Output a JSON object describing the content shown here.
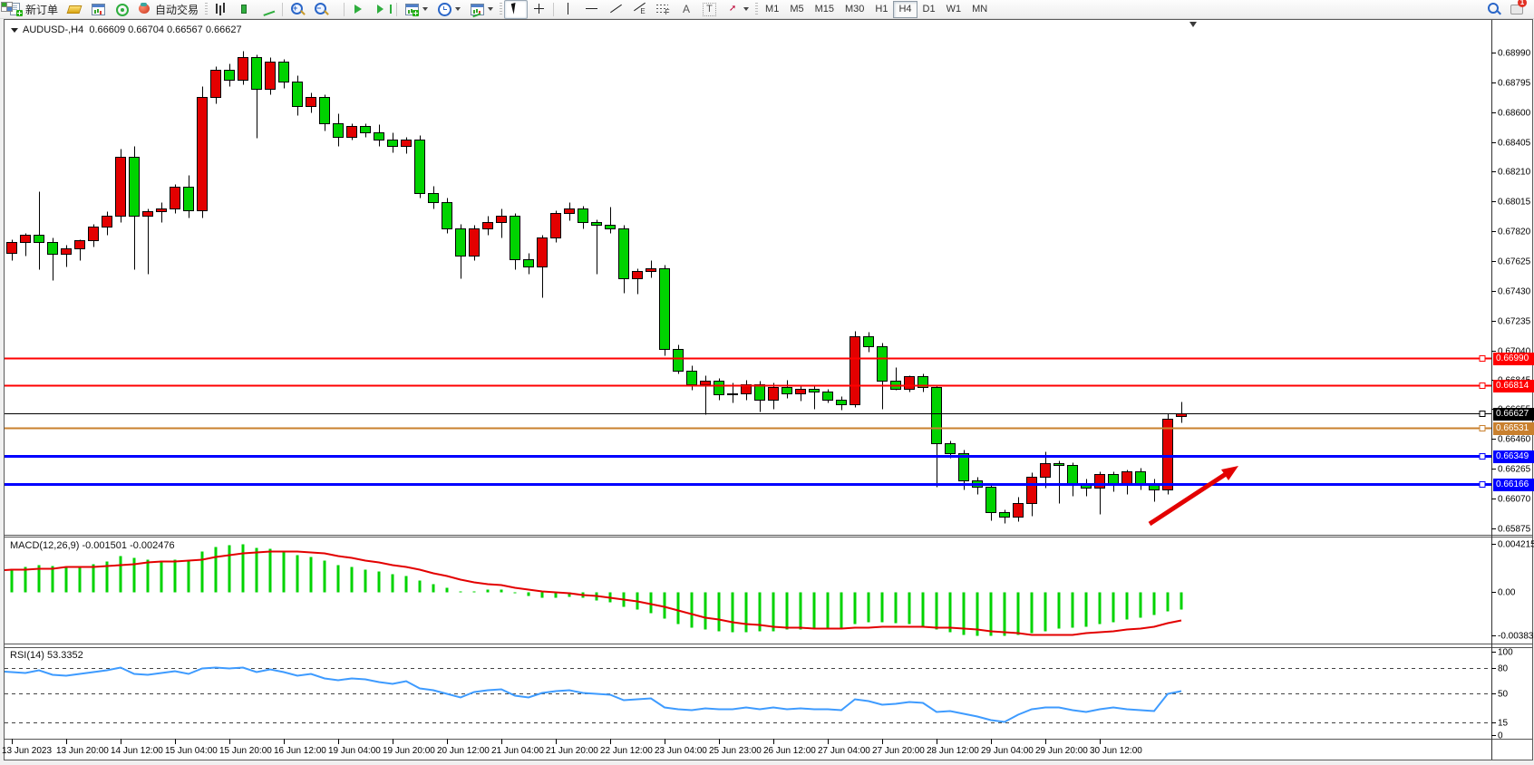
{
  "toolbar": {
    "new_order_label": "新订单",
    "autotrading_label": "自动交易",
    "timeframes": [
      "M1",
      "M5",
      "M15",
      "M30",
      "H1",
      "H4",
      "D1",
      "W1",
      "MN"
    ],
    "active_timeframe": "H4",
    "chat_badge": "1",
    "glyphs": {
      "channel": "E",
      "fibo": "F",
      "text": "A",
      "label": "T",
      "arrow": "➚"
    }
  },
  "chart": {
    "title_symbol": "AUDUSD-,H4",
    "title_ohlc": "0.66609 0.66704 0.66567 0.66627",
    "colors": {
      "bull": "#e30000",
      "bear": "#00d300",
      "wick": "#000000",
      "rsi_line": "#3e9bff",
      "macd_bar": "#00d300",
      "macd_signal": "#e30000",
      "background": "#ffffff"
    }
  },
  "chart_data": {
    "type": "candlestick",
    "symbol": "AUDUSD-",
    "timeframe": "H4",
    "current_ohlc": {
      "open": 0.66609,
      "high": 0.66704,
      "low": 0.66567,
      "close": 0.66627
    },
    "price_axis_ticks": [
      "0.68990",
      "0.68795",
      "0.68600",
      "0.68405",
      "0.68210",
      "0.68015",
      "0.67820",
      "0.67625",
      "0.67430",
      "0.67235",
      "0.67040",
      "0.66845",
      "0.66655",
      "0.66460",
      "0.66265",
      "0.66070",
      "0.65875"
    ],
    "time_axis_labels": [
      "13 Jun 2023",
      "13 Jun 20:00",
      "14 Jun 12:00",
      "15 Jun 04:00",
      "15 Jun 20:00",
      "16 Jun 12:00",
      "19 Jun 04:00",
      "19 Jun 20:00",
      "20 Jun 12:00",
      "21 Jun 04:00",
      "21 Jun 20:00",
      "22 Jun 12:00",
      "23 Jun 04:00",
      "25 Jun 23:00",
      "26 Jun 12:00",
      "27 Jun 04:00",
      "27 Jun 20:00",
      "28 Jun 12:00",
      "29 Jun 04:00",
      "29 Jun 20:00",
      "30 Jun 12:00"
    ],
    "candles": [
      [
        0.6754,
        0.6769,
        0.6752,
        0.6768
      ],
      [
        0.6768,
        0.6777,
        0.6763,
        0.6775
      ],
      [
        0.6775,
        0.6781,
        0.6766,
        0.678
      ],
      [
        0.678,
        0.6808,
        0.6757,
        0.6775
      ],
      [
        0.6775,
        0.6778,
        0.675,
        0.6767
      ],
      [
        0.6767,
        0.6773,
        0.6759,
        0.6771
      ],
      [
        0.6771,
        0.6777,
        0.6763,
        0.6776
      ],
      [
        0.6776,
        0.6787,
        0.6772,
        0.6785
      ],
      [
        0.6785,
        0.6795,
        0.678,
        0.6792
      ],
      [
        0.6792,
        0.6836,
        0.6788,
        0.6831
      ],
      [
        0.6831,
        0.6838,
        0.6757,
        0.6792
      ],
      [
        0.6792,
        0.6797,
        0.6754,
        0.6795
      ],
      [
        0.6795,
        0.6801,
        0.6788,
        0.6797
      ],
      [
        0.6797,
        0.6813,
        0.6794,
        0.6811
      ],
      [
        0.6811,
        0.6819,
        0.6791,
        0.6796
      ],
      [
        0.6796,
        0.6877,
        0.6791,
        0.687
      ],
      [
        0.687,
        0.689,
        0.6866,
        0.6888
      ],
      [
        0.6888,
        0.6892,
        0.6877,
        0.6881
      ],
      [
        0.6881,
        0.69,
        0.6878,
        0.6896
      ],
      [
        0.6896,
        0.6898,
        0.6843,
        0.6875
      ],
      [
        0.6875,
        0.6896,
        0.6872,
        0.6893
      ],
      [
        0.6893,
        0.6895,
        0.6876,
        0.688
      ],
      [
        0.688,
        0.6884,
        0.6858,
        0.6864
      ],
      [
        0.6864,
        0.6873,
        0.686,
        0.687
      ],
      [
        0.687,
        0.6872,
        0.6848,
        0.6853
      ],
      [
        0.6853,
        0.6859,
        0.6838,
        0.6844
      ],
      [
        0.6844,
        0.6853,
        0.6842,
        0.6851
      ],
      [
        0.6851,
        0.6853,
        0.6844,
        0.6847
      ],
      [
        0.6847,
        0.6852,
        0.6838,
        0.6842
      ],
      [
        0.6842,
        0.6847,
        0.6834,
        0.6838
      ],
      [
        0.6838,
        0.6844,
        0.6833,
        0.6842
      ],
      [
        0.6842,
        0.6845,
        0.6804,
        0.6807
      ],
      [
        0.6807,
        0.6812,
        0.6797,
        0.6801
      ],
      [
        0.6801,
        0.6804,
        0.6781,
        0.6784
      ],
      [
        0.6784,
        0.6787,
        0.6751,
        0.6766
      ],
      [
        0.6766,
        0.6786,
        0.6763,
        0.6784
      ],
      [
        0.6784,
        0.6792,
        0.678,
        0.6788
      ],
      [
        0.6788,
        0.6797,
        0.6778,
        0.6792
      ],
      [
        0.6792,
        0.6794,
        0.6757,
        0.6764
      ],
      [
        0.6764,
        0.6768,
        0.6754,
        0.6759
      ],
      [
        0.6759,
        0.678,
        0.6739,
        0.6778
      ],
      [
        0.6778,
        0.6796,
        0.6775,
        0.6794
      ],
      [
        0.6794,
        0.6801,
        0.6789,
        0.6797
      ],
      [
        0.6797,
        0.6799,
        0.6784,
        0.6788
      ],
      [
        0.6788,
        0.679,
        0.6754,
        0.6786
      ],
      [
        0.6786,
        0.6798,
        0.6781,
        0.6784
      ],
      [
        0.6784,
        0.6786,
        0.6742,
        0.6751
      ],
      [
        0.6751,
        0.6758,
        0.6741,
        0.6756
      ],
      [
        0.6756,
        0.6763,
        0.6752,
        0.6758
      ],
      [
        0.6758,
        0.676,
        0.6701,
        0.6705
      ],
      [
        0.6705,
        0.6708,
        0.6689,
        0.6691
      ],
      [
        0.6691,
        0.6694,
        0.6678,
        0.6682
      ],
      [
        0.6682,
        0.6688,
        0.6662,
        0.6684
      ],
      [
        0.6684,
        0.6686,
        0.6672,
        0.6675
      ],
      [
        0.6675,
        0.6683,
        0.667,
        0.6676
      ],
      [
        0.6676,
        0.6685,
        0.6672,
        0.6682
      ],
      [
        0.6682,
        0.6684,
        0.6664,
        0.6672
      ],
      [
        0.6672,
        0.6683,
        0.6666,
        0.668
      ],
      [
        0.668,
        0.6685,
        0.6673,
        0.6676
      ],
      [
        0.6676,
        0.6681,
        0.6671,
        0.6679
      ],
      [
        0.6679,
        0.6681,
        0.6666,
        0.6677
      ],
      [
        0.6677,
        0.6679,
        0.667,
        0.6672
      ],
      [
        0.6672,
        0.6674,
        0.6665,
        0.6669
      ],
      [
        0.6669,
        0.6717,
        0.6667,
        0.6713
      ],
      [
        0.6713,
        0.6716,
        0.6703,
        0.6707
      ],
      [
        0.6707,
        0.6709,
        0.6666,
        0.6684
      ],
      [
        0.6684,
        0.6693,
        0.6678,
        0.6679
      ],
      [
        0.6679,
        0.6688,
        0.6677,
        0.6687
      ],
      [
        0.6687,
        0.6689,
        0.6677,
        0.668
      ],
      [
        0.668,
        0.6682,
        0.6615,
        0.6643
      ],
      [
        0.6643,
        0.6645,
        0.6634,
        0.6637
      ],
      [
        0.6637,
        0.6639,
        0.6613,
        0.6619
      ],
      [
        0.6619,
        0.6621,
        0.661,
        0.6615
      ],
      [
        0.6615,
        0.6616,
        0.6593,
        0.6598
      ],
      [
        0.6598,
        0.66,
        0.6591,
        0.6595
      ],
      [
        0.6595,
        0.6608,
        0.6592,
        0.6604
      ],
      [
        0.6604,
        0.6624,
        0.6596,
        0.6621
      ],
      [
        0.6621,
        0.6638,
        0.6614,
        0.663
      ],
      [
        0.663,
        0.6632,
        0.6604,
        0.6629
      ],
      [
        0.6629,
        0.6631,
        0.6609,
        0.6617
      ],
      [
        0.6617,
        0.662,
        0.6609,
        0.6614
      ],
      [
        0.6614,
        0.6625,
        0.6597,
        0.6623
      ],
      [
        0.6623,
        0.6625,
        0.6612,
        0.6616
      ],
      [
        0.6616,
        0.6626,
        0.661,
        0.6625
      ],
      [
        0.6625,
        0.6627,
        0.6613,
        0.6616
      ],
      [
        0.6616,
        0.662,
        0.6605,
        0.6613
      ],
      [
        0.6613,
        0.6663,
        0.661,
        0.6659
      ],
      [
        0.66609,
        0.66704,
        0.66567,
        0.66627
      ]
    ],
    "hlines": [
      {
        "price": 0.6699,
        "label": "0.66990",
        "color": "#ff0000",
        "width": 2
      },
      {
        "price": 0.66814,
        "label": "0.66814",
        "color": "#ff0000",
        "width": 2
      },
      {
        "price": 0.66627,
        "label": "0.66627",
        "color": "#000000",
        "width": 1
      },
      {
        "price": 0.66531,
        "label": "0.66531",
        "color": "#c9802e",
        "width": 2
      },
      {
        "price": 0.66349,
        "label": "0.66349",
        "color": "#0000ff",
        "width": 3
      },
      {
        "price": 0.66166,
        "label": "0.66166",
        "color": "#0000ff",
        "width": 3
      }
    ],
    "indicators": {
      "macd": {
        "display": "MACD(12,26,9) -0.001501 -0.002476",
        "axis_ticks": [
          "0.004215",
          "0.00",
          "-0.003835"
        ],
        "values": [
          0.002,
          0.0021,
          0.0022,
          0.0024,
          0.0023,
          0.0022,
          0.0023,
          0.0025,
          0.0027,
          0.0032,
          0.003,
          0.0029,
          0.0028,
          0.0029,
          0.0028,
          0.0036,
          0.004,
          0.0041,
          0.0042,
          0.0039,
          0.0038,
          0.0036,
          0.0033,
          0.0031,
          0.0028,
          0.0024,
          0.0022,
          0.002,
          0.0018,
          0.0016,
          0.0014,
          0.001,
          0.0007,
          0.0004,
          0.0001,
          0.0001,
          0.0002,
          0.0002,
          -0.0001,
          -0.0003,
          -0.0005,
          -0.0005,
          -0.0004,
          -0.0005,
          -0.0007,
          -0.0009,
          -0.0013,
          -0.0015,
          -0.0018,
          -0.0023,
          -0.0028,
          -0.0031,
          -0.0033,
          -0.0034,
          -0.0035,
          -0.0035,
          -0.0034,
          -0.0034,
          -0.0033,
          -0.0033,
          -0.0032,
          -0.0032,
          -0.0031,
          -0.0028,
          -0.0026,
          -0.0026,
          -0.0027,
          -0.0028,
          -0.003,
          -0.0033,
          -0.0035,
          -0.0037,
          -0.0038,
          -0.0038,
          -0.0038,
          -0.0037,
          -0.0036,
          -0.0034,
          -0.0032,
          -0.0031,
          -0.003,
          -0.0028,
          -0.0026,
          -0.0024,
          -0.0022,
          -0.002,
          -0.0017,
          -0.0015
        ],
        "signal": [
          0.0019,
          0.002,
          0.002,
          0.0021,
          0.0021,
          0.0022,
          0.0022,
          0.0022,
          0.0023,
          0.0024,
          0.0025,
          0.0026,
          0.0027,
          0.0027,
          0.0028,
          0.0029,
          0.0031,
          0.0033,
          0.0034,
          0.0035,
          0.0036,
          0.0036,
          0.0036,
          0.0035,
          0.0034,
          0.0032,
          0.003,
          0.0028,
          0.0026,
          0.0024,
          0.0022,
          0.002,
          0.0017,
          0.0014,
          0.0011,
          0.0009,
          0.0007,
          0.0006,
          0.0004,
          0.0002,
          0.0001,
          0.0,
          -0.0001,
          -0.0002,
          -0.0003,
          -0.0005,
          -0.0006,
          -0.0008,
          -0.001,
          -0.0013,
          -0.0016,
          -0.0019,
          -0.0022,
          -0.0024,
          -0.0026,
          -0.0028,
          -0.0029,
          -0.003,
          -0.0031,
          -0.0031,
          -0.0032,
          -0.0032,
          -0.0032,
          -0.0031,
          -0.0031,
          -0.003,
          -0.003,
          -0.003,
          -0.003,
          -0.0031,
          -0.0031,
          -0.0032,
          -0.0033,
          -0.0034,
          -0.0035,
          -0.0036,
          -0.0037,
          -0.0037,
          -0.0037,
          -0.0037,
          -0.0036,
          -0.0035,
          -0.0034,
          -0.0033,
          -0.0032,
          -0.003,
          -0.0027,
          -0.0025
        ]
      },
      "rsi": {
        "display": "RSI(14) 53.3352",
        "levels": [
          80,
          50,
          15
        ],
        "axis_ticks": [
          "100",
          "80",
          "50",
          "15",
          "0"
        ],
        "values": [
          77,
          76,
          75,
          78,
          73,
          72,
          74,
          76,
          78,
          81,
          74,
          73,
          75,
          77,
          74,
          80,
          82,
          80,
          82,
          76,
          79,
          76,
          72,
          74,
          69,
          66,
          68,
          67,
          64,
          62,
          65,
          56,
          54,
          50,
          46,
          52,
          54,
          55,
          48,
          46,
          51,
          53,
          54,
          51,
          50,
          49,
          42,
          44,
          45,
          34,
          32,
          30,
          33,
          31,
          32,
          34,
          31,
          34,
          32,
          33,
          32,
          31,
          30,
          44,
          41,
          37,
          38,
          40,
          39,
          28,
          29,
          26,
          23,
          18,
          16,
          25,
          31,
          34,
          34,
          30,
          28,
          32,
          34,
          31,
          30,
          29,
          50,
          53.34
        ]
      }
    },
    "annotation_arrow": {
      "from": [
        1268,
        578
      ],
      "to": [
        1366,
        514
      ],
      "color": "#e30000"
    }
  }
}
